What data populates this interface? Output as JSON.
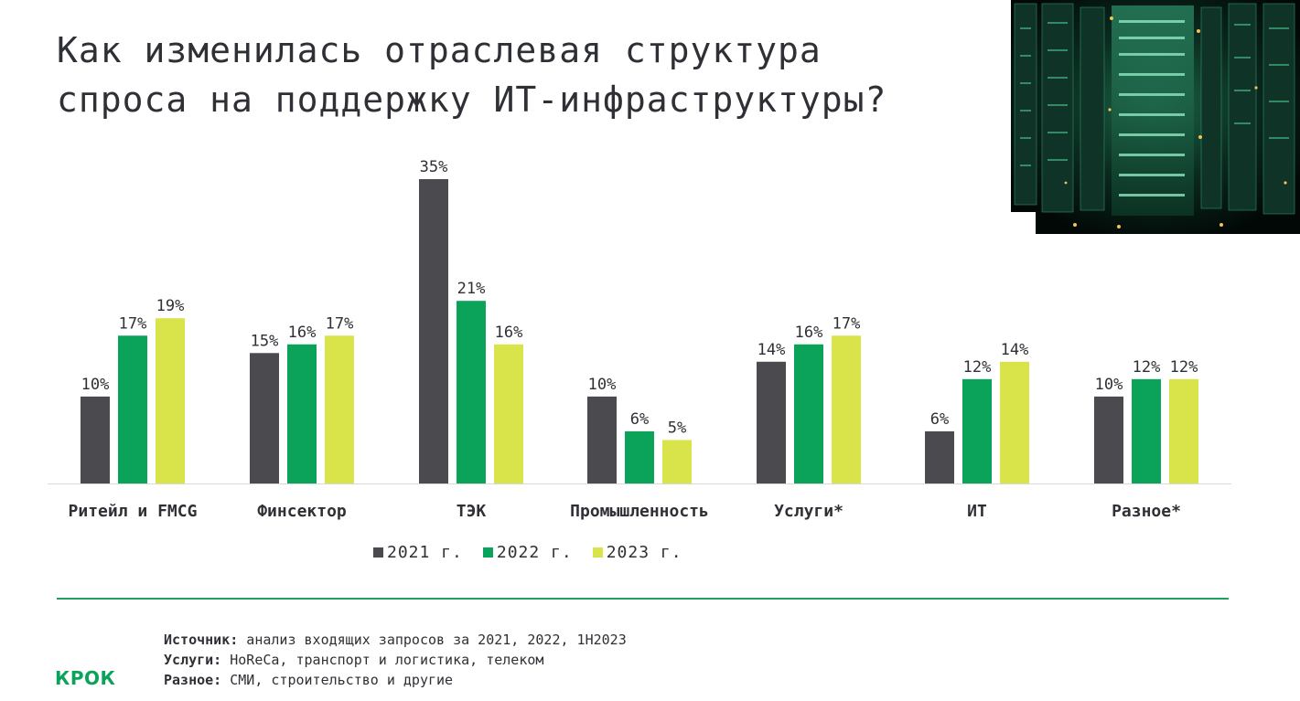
{
  "title_line1": "Как изменилась отраслевая структура",
  "title_line2": "спроса на поддержку ИТ-инфраструктуры?",
  "chart_data": {
    "type": "bar",
    "categories": [
      "Ритейл и FMCG",
      "Финсектор",
      "ТЭК",
      "Промышленность",
      "Услуги*",
      "ИТ",
      "Разное*"
    ],
    "series": [
      {
        "name": "2021 г.",
        "color": "#4a4a4f",
        "values": [
          10,
          15,
          35,
          10,
          14,
          6,
          10
        ]
      },
      {
        "name": "2022 г.",
        "color": "#0ba35a",
        "values": [
          17,
          16,
          21,
          6,
          16,
          12,
          12
        ]
      },
      {
        "name": "2023 г.",
        "color": "#d9e44a",
        "values": [
          19,
          17,
          16,
          5,
          17,
          14,
          12
        ]
      }
    ],
    "value_suffix": "%",
    "ylim": [
      0,
      35
    ],
    "grid": false,
    "legend_position": "bottom"
  },
  "notes": {
    "source_label": "Источник:",
    "source_text": " анализ входящих запросов за 2021, 2022, 1H2023",
    "services_label": "Услуги:",
    "services_text": " HoReCa, транспорт и логистика, телеком",
    "other_label": "Разное:",
    "other_text": " СМИ, строительство и другие"
  },
  "logo": "КРОК"
}
